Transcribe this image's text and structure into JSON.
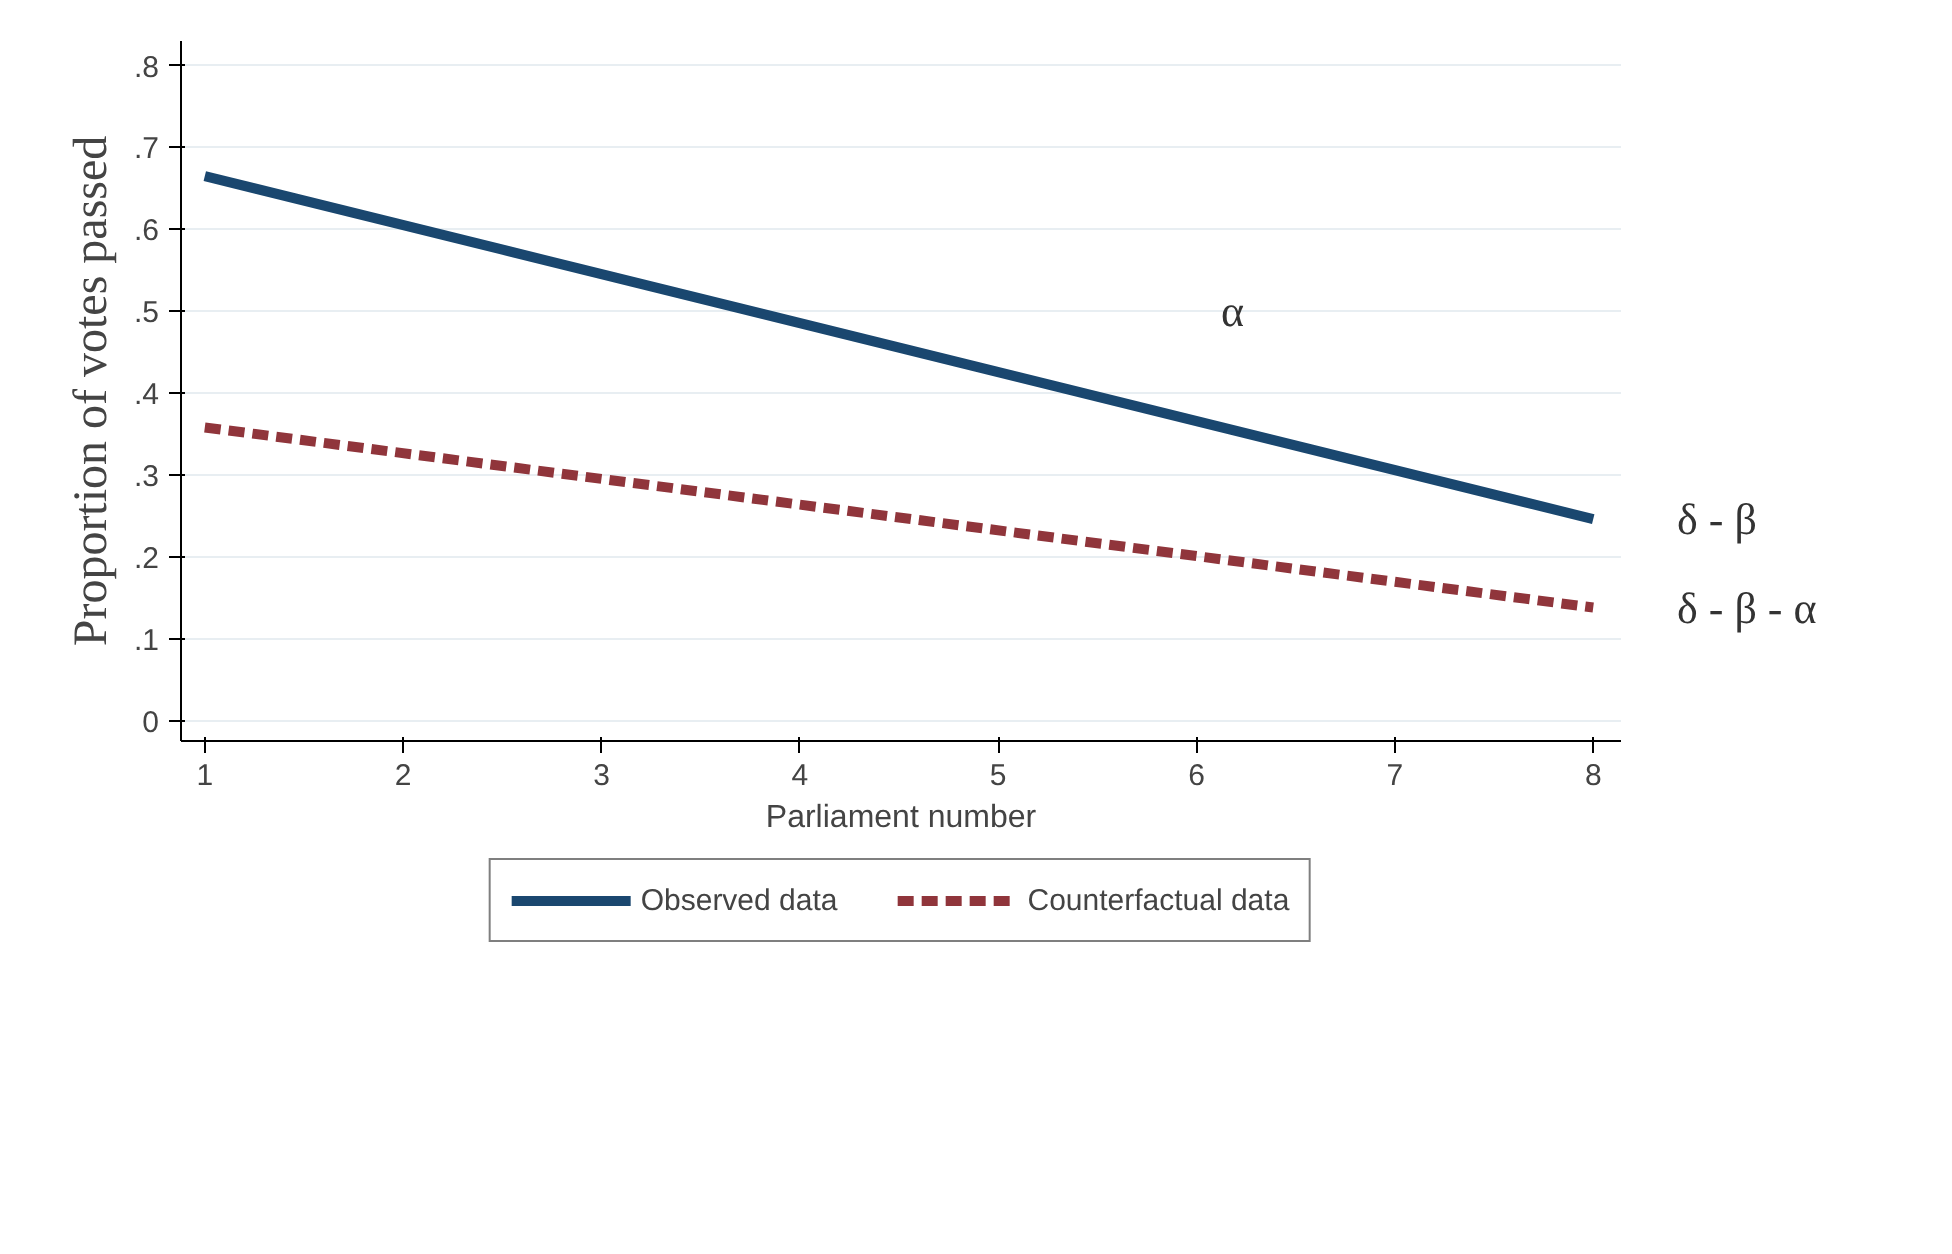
{
  "chart_data": {
    "type": "line",
    "xlabel": "Parliament number",
    "ylabel": "Proportion of votes passed",
    "x": [
      1,
      8
    ],
    "series": [
      {
        "name": "Observed data",
        "color": "#1a476f",
        "values": [
          0.665,
          0.246
        ],
        "line_style": "solid"
      },
      {
        "name": "Counterfactual data",
        "color": "#90353b",
        "values": [
          0.358,
          0.138
        ],
        "line_style": "dashed"
      }
    ],
    "xlim": [
      0.88,
      8.14
    ],
    "ylim": [
      -0.025,
      0.83
    ],
    "xticks": [
      1,
      2,
      3,
      4,
      5,
      6,
      7,
      8
    ],
    "yticks": [
      0,
      {
        "value": 0.1,
        "label": ".1"
      },
      {
        "value": 0.2,
        "label": ".2"
      },
      {
        "value": 0.3,
        "label": ".3"
      },
      {
        "value": 0.4,
        "label": ".4"
      },
      {
        "value": 0.5,
        "label": ".5"
      },
      {
        "value": 0.6,
        "label": ".6"
      },
      {
        "value": 0.7,
        "label": ".7"
      },
      {
        "value": 0.8,
        "label": ".8"
      }
    ],
    "annotations": [
      "α",
      {
        "text": "δ - β",
        "x": 8,
        "y": 0.246
      },
      {
        "text": "δ - β - α",
        "x": 8,
        "y": 0.138
      }
    ],
    "grid": "y",
    "legend": "bottom",
    "marker": "none"
  }
}
